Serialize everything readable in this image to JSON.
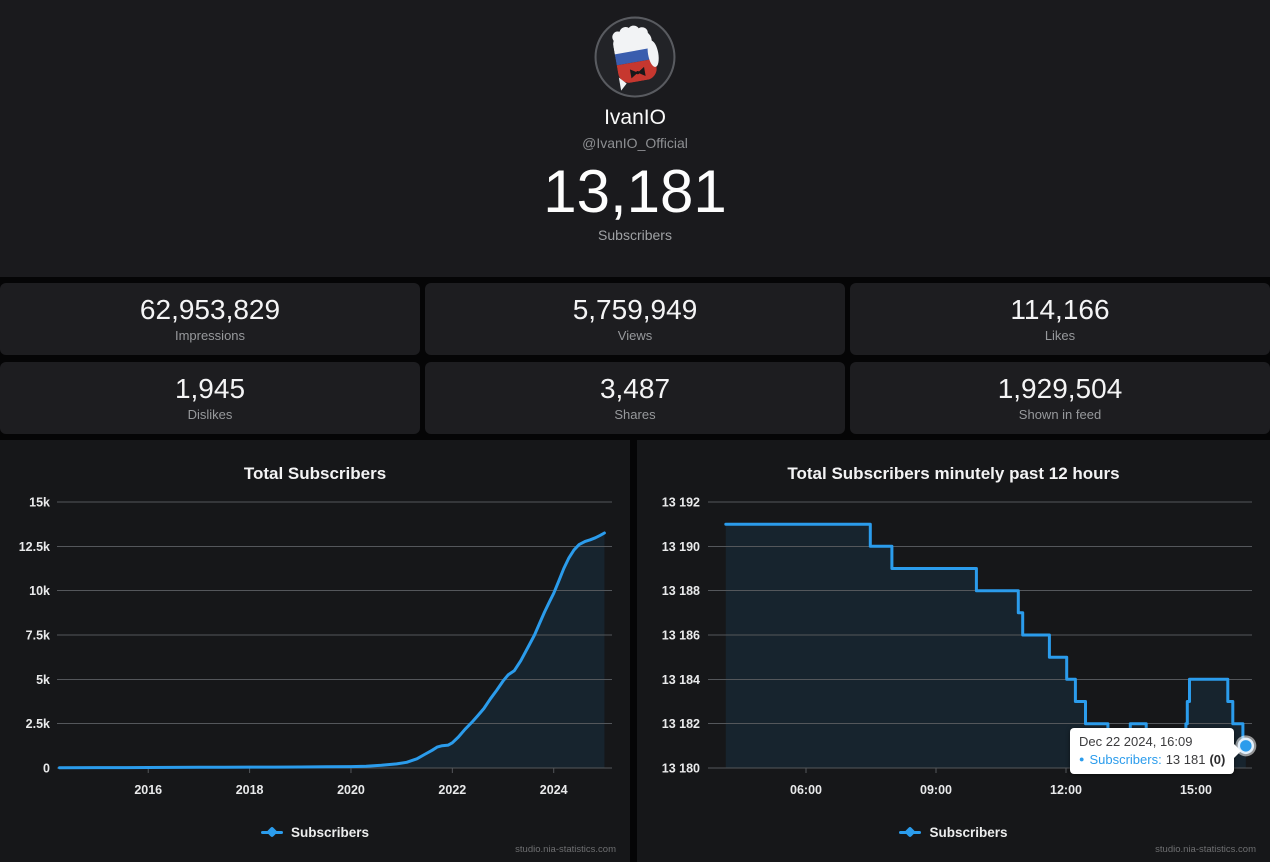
{
  "header": {
    "channel_name": "IvanIO",
    "channel_handle": "@IvanIO_Official",
    "subscriber_count": "13,181",
    "subscriber_label": "Subscribers",
    "avatar_icon": "brofist-russian-flag-logo"
  },
  "stats": [
    {
      "value": "62,953,829",
      "label": "Impressions"
    },
    {
      "value": "5,759,949",
      "label": "Views"
    },
    {
      "value": "114,166",
      "label": "Likes"
    },
    {
      "value": "1,945",
      "label": "Dislikes"
    },
    {
      "value": "3,487",
      "label": "Shares"
    },
    {
      "value": "1,929,504",
      "label": "Shown in feed"
    }
  ],
  "watermark": "studio.nia-statistics.com",
  "tooltip": {
    "date": "Dec 22 2024, 16:09",
    "marker_icon": "series-dot-icon",
    "series_label": "Subscribers:",
    "value": "13 181",
    "delta": "(0)"
  },
  "colors": {
    "accent": "#2b9cec",
    "area_fill": "rgba(43,156,235,0.10)",
    "grid": "#54575b",
    "tick_text": "#e9eaeb",
    "tooltip_bg": "#ffffff",
    "panel_bg": "#161719"
  },
  "chart_data": [
    {
      "type": "area",
      "title": "Total Subscribers",
      "legend_position": "bottom",
      "grid": true,
      "xlim": [
        2014.2,
        2025.15
      ],
      "ylim": [
        0,
        15000
      ],
      "x_tick_labels": [
        2016,
        2018,
        2020,
        2022,
        2024
      ],
      "y_tick_labels": [
        "0",
        "2.5k",
        "5k",
        "7.5k",
        "10k",
        "12.5k",
        "15k"
      ],
      "series": [
        {
          "name": "Subscribers",
          "points": [
            [
              2014.25,
              15
            ],
            [
              2015.0,
              20
            ],
            [
              2015.5,
              22
            ],
            [
              2016.0,
              28
            ],
            [
              2016.5,
              32
            ],
            [
              2017.0,
              38
            ],
            [
              2017.5,
              42
            ],
            [
              2018.0,
              48
            ],
            [
              2018.5,
              52
            ],
            [
              2019.0,
              58
            ],
            [
              2019.5,
              65
            ],
            [
              2020.0,
              80
            ],
            [
              2020.3,
              100
            ],
            [
              2020.6,
              150
            ],
            [
              2020.9,
              230
            ],
            [
              2021.1,
              320
            ],
            [
              2021.3,
              520
            ],
            [
              2021.45,
              760
            ],
            [
              2021.6,
              1000
            ],
            [
              2021.7,
              1180
            ],
            [
              2021.8,
              1260
            ],
            [
              2021.92,
              1290
            ],
            [
              2022.0,
              1420
            ],
            [
              2022.12,
              1750
            ],
            [
              2022.25,
              2180
            ],
            [
              2022.4,
              2620
            ],
            [
              2022.5,
              2950
            ],
            [
              2022.62,
              3350
            ],
            [
              2022.75,
              3900
            ],
            [
              2022.88,
              4400
            ],
            [
              2023.0,
              4900
            ],
            [
              2023.1,
              5250
            ],
            [
              2023.22,
              5480
            ],
            [
              2023.35,
              6050
            ],
            [
              2023.5,
              6850
            ],
            [
              2023.62,
              7500
            ],
            [
              2023.72,
              8150
            ],
            [
              2023.82,
              8800
            ],
            [
              2023.92,
              9400
            ],
            [
              2024.0,
              9850
            ],
            [
              2024.1,
              10550
            ],
            [
              2024.2,
              11250
            ],
            [
              2024.3,
              11850
            ],
            [
              2024.4,
              12300
            ],
            [
              2024.5,
              12600
            ],
            [
              2024.62,
              12780
            ],
            [
              2024.72,
              12870
            ],
            [
              2024.82,
              12980
            ],
            [
              2024.92,
              13120
            ],
            [
              2025.0,
              13250
            ]
          ]
        }
      ]
    },
    {
      "type": "line",
      "step": true,
      "title": "Total Subscribers minutely past 12 hours",
      "legend_position": "bottom",
      "grid": true,
      "xlim_time": [
        "03:44",
        "16:20"
      ],
      "ylim": [
        13180,
        13192
      ],
      "x_tick_labels": [
        "06:00",
        "09:00",
        "12:00",
        "15:00"
      ],
      "y_tick_labels": [
        "13 180",
        "13 182",
        "13 184",
        "13 186",
        "13 188",
        "13 190",
        "13 192"
      ],
      "series": [
        {
          "name": "Subscribers",
          "steps": [
            [
              "04:09",
              13191
            ],
            [
              "07:29",
              13190
            ],
            [
              "07:59",
              13189
            ],
            [
              "09:56",
              13188
            ],
            [
              "10:54",
              13187
            ],
            [
              "11:00",
              13186
            ],
            [
              "11:37",
              13185
            ],
            [
              "12:01",
              13184
            ],
            [
              "12:13",
              13183
            ],
            [
              "12:27",
              13182
            ],
            [
              "12:58",
              13181
            ],
            [
              "13:29",
              13182
            ],
            [
              "13:51",
              13181
            ],
            [
              "14:46",
              13182
            ],
            [
              "14:48",
              13183
            ],
            [
              "14:51",
              13184
            ],
            [
              "15:44",
              13183
            ],
            [
              "15:51",
              13182
            ],
            [
              "16:05",
              13181
            ],
            [
              "16:09",
              13181
            ]
          ],
          "last_point": {
            "time": "16:09",
            "value": 13181
          }
        }
      ]
    }
  ]
}
